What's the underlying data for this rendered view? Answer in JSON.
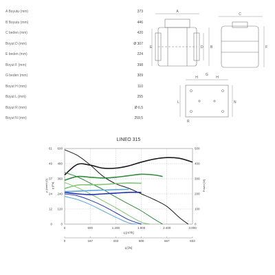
{
  "dimensions": [
    {
      "label": "A Boyutu (mm)",
      "value": "373"
    },
    {
      "label": "B Boyutu (mm)",
      "value": "446"
    },
    {
      "label": "C beden (mm)",
      "value": "420"
    },
    {
      "label": "Boyut D (mm)",
      "value": "Ø 307"
    },
    {
      "label": "E beden (mm)",
      "value": "224"
    },
    {
      "label": "Boyut F (mm)",
      "value": "398"
    },
    {
      "label": "G beden (mm)",
      "value": "309"
    },
    {
      "label": "Boyut H (mm)",
      "value": "110"
    },
    {
      "label": "Boyut L (mm)",
      "value": "255"
    },
    {
      "label": "Boyut R (mm)",
      "value": "Ø 6,5"
    },
    {
      "label": "Boyut N (mm)",
      "value": "259,5"
    }
  ],
  "drawing_letters": {
    "a": "A",
    "b": "B",
    "c": "C",
    "d": "D",
    "e": "E",
    "f": "F",
    "g": "G",
    "h1": "H",
    "h2": "H",
    "l": "L",
    "n": "N",
    "r": "R"
  },
  "chart_data": {
    "type": "line",
    "title": "LINEO 315",
    "xlabel": "q [m³/h]",
    "x2label": "q [l/s]",
    "ylabel_left": "p [Pa]",
    "ylabel_left_alt": "p [mmH₂O]",
    "ylabel_right": "Power [W]",
    "xlim": [
      0,
      3000
    ],
    "x_ticks": [
      "0",
      "600",
      "1.200",
      "1.800",
      "2.400",
      "3.000"
    ],
    "x2_ticks": [
      "0",
      "167",
      "333",
      "500",
      "667",
      "833"
    ],
    "ylim_pa": [
      0,
      600
    ],
    "y_pa_ticks": [
      "0",
      "120",
      "240",
      "360",
      "480",
      "600"
    ],
    "y_mm_ticks": [
      "0",
      "12",
      "24",
      "37",
      "49",
      "61"
    ],
    "ylim_power": [
      0,
      500
    ],
    "y_power_ticks": [
      "0",
      "100",
      "200",
      "300",
      "400",
      "500"
    ],
    "grid": true,
    "series": [
      {
        "kind": "pressure",
        "color": "#1a1a1a",
        "x": [
          0,
          300,
          600,
          900,
          1200,
          1500,
          1800,
          2100,
          2400,
          2700,
          2900
        ],
        "y": [
          590,
          545,
          470,
          380,
          320,
          285,
          240,
          195,
          140,
          50,
          0
        ]
      },
      {
        "kind": "power",
        "color": "#1a1a1a",
        "x": [
          0,
          300,
          600,
          900,
          1200,
          1500,
          1800,
          2100,
          2400,
          2700,
          3000
        ],
        "y": [
          325,
          395,
          390,
          370,
          370,
          385,
          410,
          430,
          440,
          435,
          410
        ]
      },
      {
        "kind": "pressure",
        "color": "#2e8b3a",
        "x": [
          0,
          300,
          600,
          900,
          1200,
          1500,
          1800,
          2100,
          2300
        ],
        "y": [
          410,
          375,
          325,
          275,
          215,
          160,
          105,
          40,
          0
        ]
      },
      {
        "kind": "power",
        "color": "#2e8b3a",
        "x": [
          0,
          300,
          600,
          900,
          1200,
          1500,
          1800,
          2100,
          2300
        ],
        "y": [
          290,
          315,
          310,
          305,
          310,
          320,
          330,
          325,
          315
        ]
      },
      {
        "kind": "pressure",
        "color": "#7cc576",
        "x": [
          0,
          300,
          600,
          900,
          1200,
          1500,
          1800,
          2000
        ],
        "y": [
          330,
          290,
          240,
          185,
          130,
          70,
          15,
          0
        ]
      },
      {
        "kind": "power",
        "color": "#7cc576",
        "x": [
          0,
          300,
          600,
          900,
          1200,
          1500,
          1800
        ],
        "y": [
          235,
          258,
          260,
          262,
          268,
          272,
          270
        ]
      },
      {
        "kind": "pressure",
        "color": "#2233aa",
        "x": [
          0,
          300,
          600,
          900,
          1200,
          1500,
          1800
        ],
        "y": [
          240,
          225,
          190,
          145,
          90,
          35,
          0
        ]
      },
      {
        "kind": "power",
        "color": "#2233aa",
        "x": [
          0,
          300,
          600,
          900,
          1200,
          1500,
          1800
        ],
        "y": [
          210,
          200,
          195,
          200,
          205,
          210,
          210
        ]
      },
      {
        "kind": "pressure",
        "color": "#5aa7e0",
        "x": [
          0,
          300,
          600,
          900,
          1200,
          1500,
          1700
        ],
        "y": [
          220,
          195,
          155,
          105,
          55,
          10,
          0
        ]
      },
      {
        "kind": "power",
        "color": "#5aa7e0",
        "x": [
          0,
          300,
          600,
          900,
          1200,
          1500
        ],
        "y": [
          215,
          218,
          222,
          225,
          228,
          230
        ]
      }
    ]
  }
}
